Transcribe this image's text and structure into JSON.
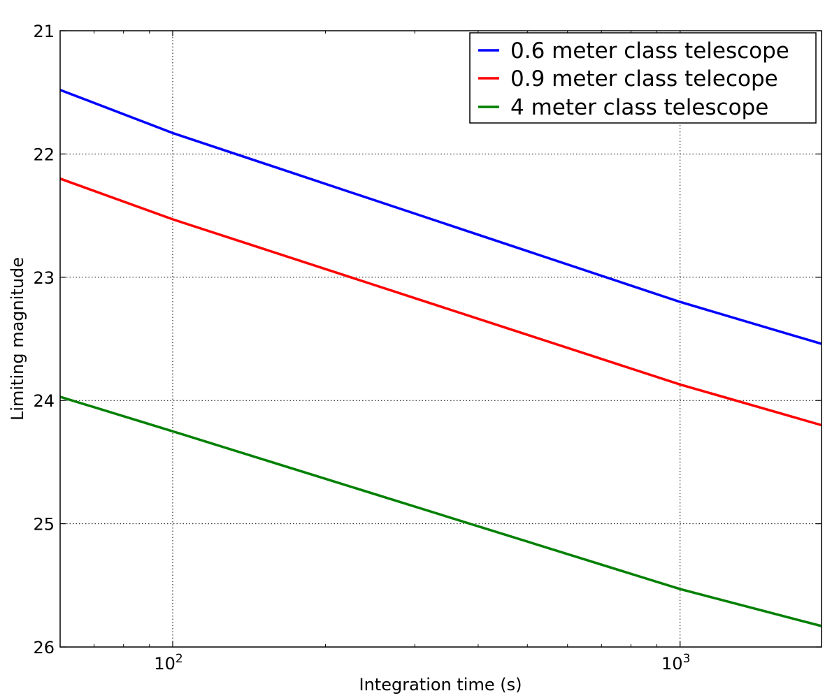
{
  "chart_data": {
    "type": "line",
    "title": "",
    "xlabel": "Integration time (s)",
    "ylabel": "Limiting magnitude",
    "xscale": "log",
    "xlim": [
      60,
      1900
    ],
    "ylim": [
      21,
      26
    ],
    "y_inverted": true,
    "grid": true,
    "legend_position": "top-right",
    "x_ticks": [
      {
        "value": 100,
        "base": "10",
        "exp": "2"
      },
      {
        "value": 1000,
        "base": "10",
        "exp": "3"
      }
    ],
    "y_ticks": [
      {
        "value": 21,
        "label": "21"
      },
      {
        "value": 22,
        "label": "22"
      },
      {
        "value": 23,
        "label": "23"
      },
      {
        "value": 24,
        "label": "24"
      },
      {
        "value": 25,
        "label": "25"
      },
      {
        "value": 26,
        "label": "26"
      }
    ],
    "series": [
      {
        "name": "0.6 meter class telescope",
        "color": "#0000ff",
        "x": [
          60,
          100,
          1000,
          1900
        ],
        "y": [
          21.48,
          21.83,
          23.2,
          23.54
        ]
      },
      {
        "name": "0.9 meter class telecope",
        "color": "#ff0000",
        "x": [
          60,
          100,
          1000,
          1900
        ],
        "y": [
          22.2,
          22.53,
          23.87,
          24.2
        ]
      },
      {
        "name": "4 meter class telescope",
        "color": "#008000",
        "x": [
          60,
          100,
          1000,
          1900
        ],
        "y": [
          23.97,
          24.25,
          25.53,
          25.83
        ]
      }
    ]
  }
}
